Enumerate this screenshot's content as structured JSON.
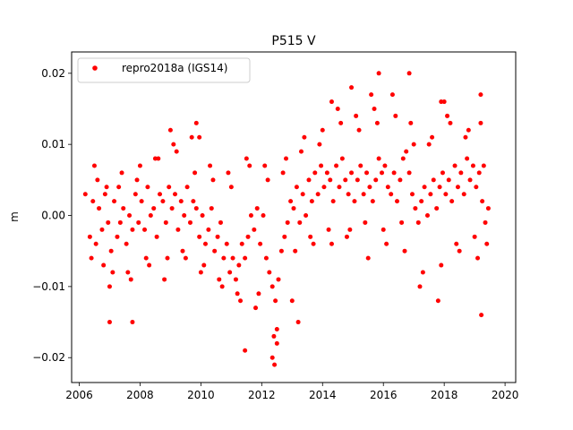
{
  "chart_data": {
    "type": "scatter",
    "title": "P515 V",
    "xlabel": "",
    "ylabel": "m",
    "xlim": [
      2005.75,
      2020.35
    ],
    "ylim": [
      -0.0235,
      0.023
    ],
    "xticks": [
      2006,
      2008,
      2010,
      2012,
      2014,
      2016,
      2018,
      2020
    ],
    "xtick_labels": [
      "2006",
      "2008",
      "2010",
      "2012",
      "2014",
      "2016",
      "2018",
      "2020"
    ],
    "yticks": [
      -0.02,
      -0.01,
      0.0,
      0.01,
      0.02
    ],
    "ytick_labels": [
      "−0.02",
      "−0.01",
      "0.00",
      "0.01",
      "0.02"
    ],
    "grid": false,
    "legend_position": "top-left",
    "colors": {
      "series": "#ff0000"
    },
    "series": [
      {
        "name": "repro2018a (IGS14)",
        "x": [
          2006.35,
          2006.45,
          2006.55,
          2006.65,
          2006.75,
          2006.85,
          2006.95,
          2007.05,
          2007.15,
          2007.25,
          2007.35,
          2007.45,
          2007.55,
          2007.65,
          2007.75,
          2007.85,
          2007.95,
          2008.05,
          2008.15,
          2008.25,
          2008.35,
          2008.45,
          2008.55,
          2008.65,
          2008.75,
          2008.85,
          2008.95,
          2009.05,
          2009.15,
          2009.25,
          2009.35,
          2009.45,
          2009.55,
          2009.65,
          2009.75,
          2009.85,
          2009.95,
          2010.05,
          2010.15,
          2010.25,
          2010.35,
          2010.45,
          2010.55,
          2010.65,
          2010.75,
          2010.85,
          2010.95,
          2011.05,
          2011.15,
          2011.25,
          2011.35,
          2011.45,
          2011.55,
          2011.65,
          2011.75,
          2011.85,
          2011.95,
          2012.05,
          2012.15,
          2012.25,
          2012.35,
          2012.45,
          2012.55,
          2012.65,
          2012.75,
          2012.85,
          2012.95,
          2013.05,
          2013.15,
          2013.25,
          2013.35,
          2013.45,
          2013.55,
          2013.65,
          2013.75,
          2013.85,
          2013.95,
          2014.05,
          2014.15,
          2014.25,
          2014.35,
          2014.45,
          2014.55,
          2014.65,
          2014.75,
          2014.85,
          2014.95,
          2015.05,
          2015.15,
          2015.25,
          2015.35,
          2015.45,
          2015.55,
          2015.65,
          2015.75,
          2015.85,
          2015.95,
          2016.05,
          2016.15,
          2016.25,
          2016.35,
          2016.45,
          2016.55,
          2016.65,
          2016.75,
          2016.85,
          2016.95,
          2017.05,
          2017.15,
          2017.25,
          2017.35,
          2017.45,
          2017.55,
          2017.65,
          2017.75,
          2017.85,
          2017.95,
          2018.05,
          2018.15,
          2018.25,
          2018.35,
          2018.45,
          2018.55,
          2018.65,
          2018.75,
          2018.85,
          2018.95,
          2019.05,
          2019.15,
          2019.25,
          2019.35,
          2019.45,
          2006.4,
          2006.6,
          2006.9,
          2007.1,
          2007.4,
          2007.7,
          2008.0,
          2008.3,
          2008.6,
          2008.9,
          2009.2,
          2009.5,
          2009.8,
          2010.1,
          2010.4,
          2010.7,
          2011.0,
          2011.3,
          2011.6,
          2011.9,
          2012.2,
          2012.5,
          2012.8,
          2013.1,
          2013.4,
          2013.7,
          2014.0,
          2014.3,
          2014.6,
          2014.9,
          2015.2,
          2015.5,
          2015.8,
          2016.1,
          2016.4,
          2016.7,
          2017.0,
          2017.3,
          2017.6,
          2017.9,
          2018.2,
          2018.5,
          2018.8,
          2019.1,
          2019.3,
          2006.5,
          2006.8,
          2007.0,
          2007.3,
          2007.6,
          2007.9,
          2008.2,
          2008.5,
          2008.8,
          2009.1,
          2009.4,
          2009.7,
          2010.0,
          2010.3,
          2010.6,
          2010.9,
          2011.2,
          2011.5,
          2011.8,
          2012.1,
          2012.4,
          2012.7,
          2013.0,
          2013.3,
          2013.6,
          2013.9,
          2014.2,
          2014.5,
          2014.8,
          2015.1,
          2015.4,
          2015.7,
          2016.0,
          2016.3,
          2016.6,
          2016.9,
          2017.2,
          2017.5,
          2017.8,
          2018.1,
          2018.4,
          2018.7,
          2019.0,
          2019.2,
          2019.4,
          2014.95,
          2015.85,
          2016.85,
          2018.0,
          2019.2,
          2009.0,
          2009.85,
          2012.35,
          2012.42,
          2011.45,
          2007.0,
          2007.75,
          2012.5,
          2019.22,
          2013.2,
          2006.2,
          2009.95,
          2014.3,
          2015.6,
          2017.9
        ],
        "y": [
          -0.003,
          0.002,
          -0.004,
          0.001,
          -0.002,
          0.003,
          -0.001,
          -0.005,
          0.002,
          -0.003,
          -0.001,
          0.001,
          -0.004,
          0.0,
          -0.002,
          0.003,
          -0.001,
          0.002,
          -0.002,
          0.004,
          0.0,
          0.001,
          -0.003,
          0.003,
          0.002,
          -0.001,
          0.004,
          0.001,
          0.003,
          -0.002,
          0.002,
          0.0,
          0.004,
          -0.001,
          0.002,
          0.001,
          -0.003,
          0.0,
          -0.004,
          -0.002,
          0.001,
          -0.005,
          -0.003,
          -0.001,
          -0.006,
          -0.004,
          -0.008,
          -0.006,
          -0.009,
          -0.007,
          -0.004,
          -0.006,
          -0.003,
          0.0,
          -0.002,
          0.001,
          -0.004,
          0.0,
          -0.006,
          -0.008,
          -0.01,
          -0.012,
          -0.009,
          -0.005,
          -0.003,
          -0.001,
          0.002,
          0.001,
          0.004,
          -0.001,
          0.003,
          0.0,
          0.005,
          0.002,
          0.006,
          0.003,
          0.007,
          0.004,
          0.006,
          0.005,
          0.002,
          0.007,
          0.004,
          0.008,
          0.005,
          0.003,
          0.006,
          0.002,
          0.005,
          0.007,
          0.003,
          0.006,
          0.004,
          0.002,
          0.005,
          0.008,
          0.006,
          0.007,
          0.004,
          0.003,
          0.006,
          0.002,
          0.005,
          0.008,
          0.009,
          0.006,
          0.003,
          0.001,
          -0.001,
          0.002,
          0.004,
          0.0,
          0.003,
          0.005,
          0.001,
          0.004,
          0.006,
          0.003,
          0.005,
          0.002,
          0.007,
          0.004,
          0.006,
          0.003,
          0.008,
          0.005,
          0.007,
          0.004,
          0.006,
          0.002,
          -0.001,
          0.001,
          -0.006,
          0.005,
          0.004,
          -0.008,
          0.006,
          -0.009,
          0.007,
          -0.007,
          0.008,
          -0.006,
          0.009,
          -0.006,
          0.006,
          -0.007,
          0.005,
          -0.01,
          0.004,
          -0.012,
          0.007,
          -0.011,
          0.005,
          -0.016,
          0.008,
          -0.005,
          0.011,
          -0.004,
          0.012,
          -0.004,
          0.013,
          -0.002,
          0.012,
          -0.006,
          0.013,
          -0.004,
          0.014,
          -0.005,
          0.01,
          -0.008,
          0.011,
          -0.007,
          0.013,
          -0.005,
          0.012,
          -0.006,
          0.007,
          0.007,
          -0.007,
          -0.01,
          0.004,
          -0.008,
          0.005,
          -0.006,
          0.008,
          -0.009,
          0.01,
          -0.005,
          0.011,
          -0.008,
          0.007,
          -0.009,
          0.006,
          -0.011,
          0.008,
          -0.013,
          0.007,
          -0.017,
          0.006,
          -0.012,
          0.009,
          -0.003,
          0.01,
          -0.002,
          0.015,
          -0.003,
          0.014,
          -0.001,
          0.015,
          -0.002,
          0.017,
          -0.001,
          0.013,
          -0.01,
          0.01,
          -0.012,
          0.014,
          -0.004,
          0.011,
          -0.003,
          0.013,
          -0.004,
          0.018,
          0.02,
          0.02,
          0.016,
          0.017,
          0.012,
          0.013,
          -0.02,
          -0.021,
          -0.019,
          -0.015,
          -0.015,
          -0.018,
          -0.014,
          -0.015,
          0.003,
          0.011,
          0.016,
          0.017,
          0.016
        ]
      }
    ]
  }
}
